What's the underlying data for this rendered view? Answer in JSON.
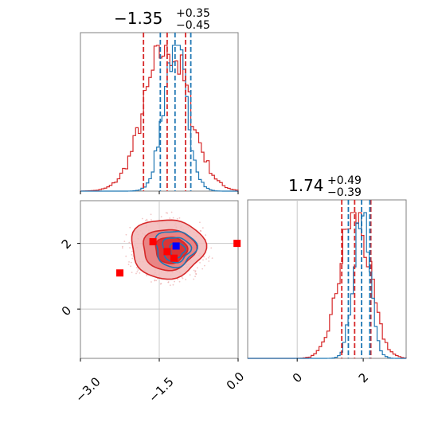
{
  "chart_data": [
    {
      "type": "histogram",
      "panel": "top-left",
      "parameter_index": 0,
      "title": {
        "main": "−1.35",
        "sup": "+0.35",
        "sub": "−0.45"
      },
      "xlim": [
        -3.0,
        0.0
      ],
      "series": [
        {
          "name": "",
          "color": "#d62728",
          "mean": -1.35,
          "sd": 0.42,
          "lines": [
            -1.8,
            -1.35,
            -1.0
          ]
        },
        {
          "name": "",
          "color": "#1f77b4",
          "mean": -1.2,
          "sd": 0.22,
          "lines": [
            -1.48,
            -1.2,
            -0.9
          ]
        }
      ]
    },
    {
      "type": "contour",
      "panel": "bottom-left",
      "xlim": [
        -3.0,
        0.0
      ],
      "ylim": [
        -1.5,
        3.3
      ],
      "xticks": [
        "−3.0",
        "−1.5",
        "0.0"
      ],
      "yticks": [
        "0",
        "2"
      ],
      "reference_lines": {
        "x": -1.5,
        "y": 2.0
      },
      "red_markers": [
        [
          -2.25,
          1.1
        ],
        [
          -1.62,
          2.05
        ],
        [
          -1.35,
          1.75
        ],
        [
          -1.22,
          1.55
        ],
        [
          -0.02,
          2.0
        ]
      ],
      "blue_markers": [
        [
          -1.18,
          1.92
        ]
      ],
      "red_contours": [
        {
          "cx": -1.35,
          "cy": 1.85,
          "rx": 0.7,
          "ry": 0.9
        },
        {
          "cx": -1.32,
          "cy": 1.82,
          "rx": 0.5,
          "ry": 0.62
        },
        {
          "cx": -1.28,
          "cy": 1.8,
          "rx": 0.3,
          "ry": 0.4
        }
      ],
      "blue_contours": [
        {
          "cx": -1.2,
          "cy": 1.85,
          "rx": 0.38,
          "ry": 0.55
        },
        {
          "cx": -1.18,
          "cy": 1.82,
          "rx": 0.26,
          "ry": 0.38
        },
        {
          "cx": -1.16,
          "cy": 1.8,
          "rx": 0.14,
          "ry": 0.22
        }
      ]
    },
    {
      "type": "histogram",
      "panel": "bottom-right",
      "parameter_index": 1,
      "title": {
        "main": "1.74",
        "sup": "+0.49",
        "sub": "−0.39"
      },
      "xlim": [
        -1.5,
        3.3
      ],
      "xticks": [
        "0",
        "2"
      ],
      "reference_line": 0.0,
      "series": [
        {
          "name": "",
          "color": "#d62728",
          "mean": 1.74,
          "sd": 0.45,
          "lines": [
            1.35,
            1.74,
            2.23
          ]
        },
        {
          "name": "",
          "color": "#1f77b4",
          "mean": 1.95,
          "sd": 0.25,
          "lines": [
            1.55,
            1.95,
            2.2
          ]
        }
      ]
    }
  ]
}
